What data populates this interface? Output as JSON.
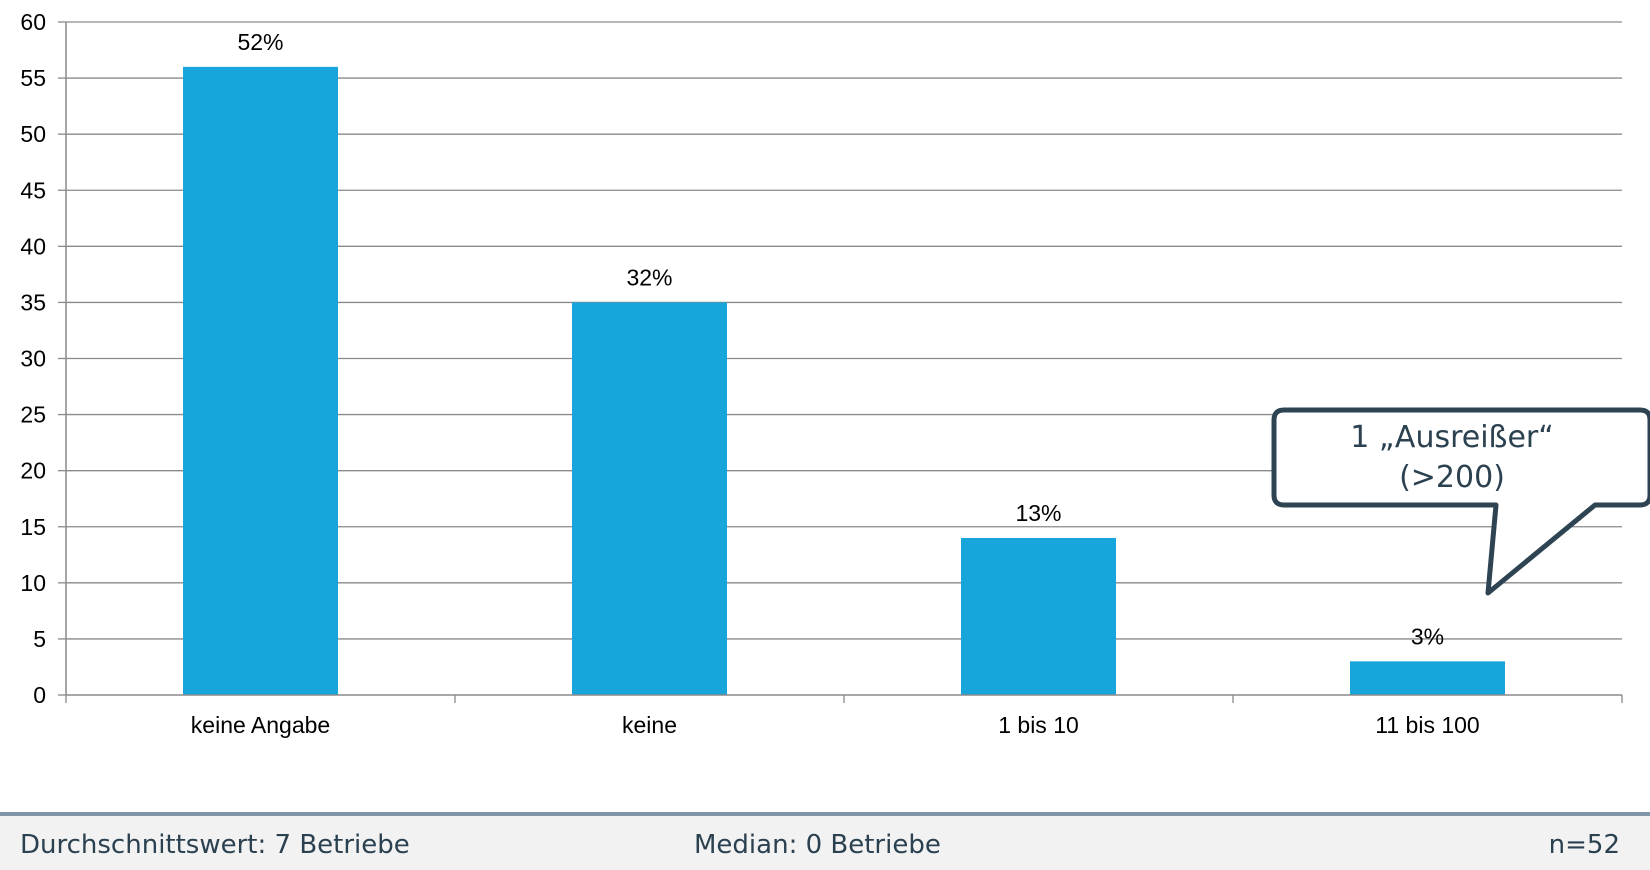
{
  "chart_data": {
    "type": "bar",
    "categories": [
      "keine Angabe",
      "keine",
      "1 bis 10",
      "11 bis 100"
    ],
    "values": [
      56,
      35,
      14,
      3
    ],
    "data_labels": [
      "52%",
      "32%",
      "13%",
      "3%"
    ],
    "ylim": [
      0,
      60
    ],
    "yticks": [
      0,
      5,
      10,
      15,
      20,
      25,
      30,
      35,
      40,
      45,
      50,
      55,
      60
    ],
    "grid": true,
    "bar_color": "#17a5dc",
    "title": "",
    "xlabel": "",
    "ylabel": ""
  },
  "callout": {
    "line1": "1 „Ausreißer“",
    "line2": "(>200)"
  },
  "footer": {
    "average": "Durchschnittswert: 7 Betriebe",
    "median": "Median: 0 Betriebe",
    "n": "n=52"
  }
}
